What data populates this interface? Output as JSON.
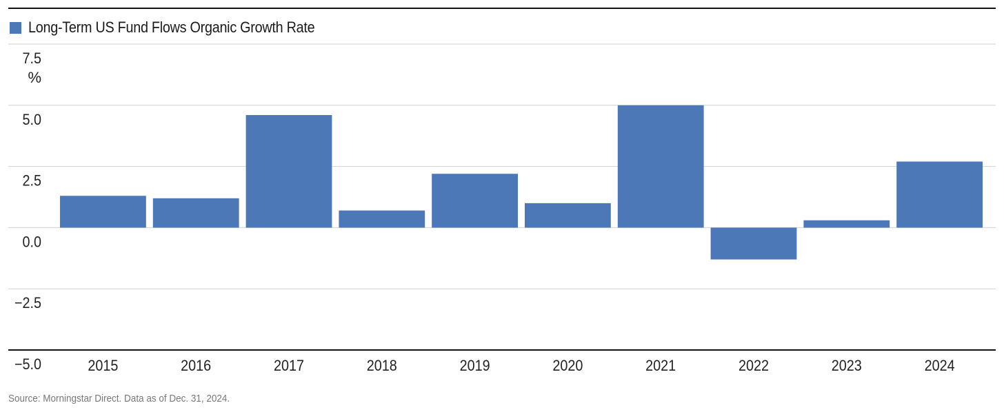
{
  "chart_data": {
    "type": "bar",
    "legend": {
      "label": "Long-Term US Fund Flows Organic Growth Rate",
      "color": "#4c78b7"
    },
    "categories": [
      "2015",
      "2016",
      "2017",
      "2018",
      "2019",
      "2020",
      "2021",
      "2022",
      "2023",
      "2024"
    ],
    "series": [
      {
        "name": "Long-Term US Fund Flows Organic Growth Rate",
        "values": [
          1.3,
          1.2,
          4.6,
          0.7,
          2.2,
          1.0,
          5.0,
          -1.3,
          0.3,
          2.7
        ]
      }
    ],
    "ylim": [
      -5.0,
      7.5
    ],
    "yticks": [
      {
        "value": 7.5,
        "label": "7.5"
      },
      {
        "value": 5.0,
        "label": "5.0"
      },
      {
        "value": 2.5,
        "label": "2.5"
      },
      {
        "value": 0.0,
        "label": "0.0"
      },
      {
        "value": -2.5,
        "label": "−2.5"
      },
      {
        "value": -5.0,
        "label": "−5.0"
      }
    ],
    "yunit": "%",
    "grid": true,
    "legend_position": "top-left",
    "bar_color": "#4c78b7",
    "grid_color": "#d0d0d0",
    "axis_color": "#111111"
  },
  "source_note": "Source: Morningstar Direct. Data as of Dec. 31, 2024."
}
